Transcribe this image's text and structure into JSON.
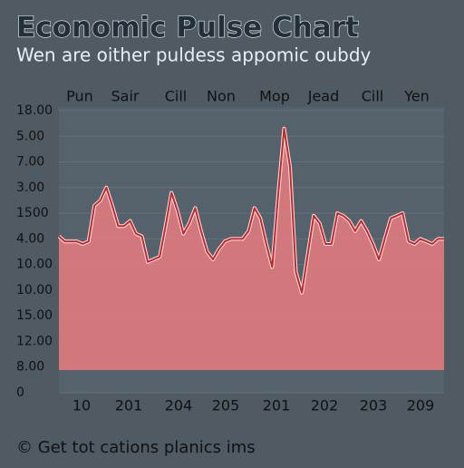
{
  "chart_data": {
    "type": "area",
    "title": "Economic Pulse Chart",
    "subtitle": "Wen are oither puldess appomic oubdy",
    "footer": "© Get tot cations planics ims",
    "top_labels": [
      "Pun",
      "Sair",
      "Cill",
      "Non",
      "Mop",
      "Jead",
      "Cill",
      "Yen"
    ],
    "bottom_labels": [
      "10",
      "201",
      "204",
      "205",
      "201",
      "202",
      "203",
      "209"
    ],
    "color": "#e07b80",
    "line_color": "#c0282e",
    "ylim": [
      0,
      11
    ],
    "yticks": [
      {
        "value": 11,
        "label": "18.00"
      },
      {
        "value": 10,
        "label": "5.00"
      },
      {
        "value": 9,
        "label": "7.00"
      },
      {
        "value": 8,
        "label": "3.00"
      },
      {
        "value": 7,
        "label": "1500"
      },
      {
        "value": 6,
        "label": "4.00"
      },
      {
        "value": 5,
        "label": "10.00"
      },
      {
        "value": 4,
        "label": "10.00"
      },
      {
        "value": 3,
        "label": "15.00"
      },
      {
        "value": 2,
        "label": "12.00"
      },
      {
        "value": 1,
        "label": "8.00"
      },
      0
    ],
    "grid": true,
    "values": [
      6.1,
      5.9,
      5.9,
      5.9,
      5.8,
      5.9,
      7.3,
      7.5,
      8.0,
      7.3,
      6.5,
      6.5,
      6.7,
      6.2,
      6.1,
      5.1,
      5.2,
      5.3,
      6.5,
      7.8,
      7.1,
      6.2,
      6.6,
      7.2,
      6.3,
      5.5,
      5.2,
      5.6,
      5.9,
      6.0,
      6.0,
      6.0,
      6.3,
      7.2,
      6.8,
      5.8,
      4.9,
      7.7,
      10.3,
      8.8,
      4.7,
      3.9,
      5.4,
      6.9,
      6.6,
      5.8,
      5.8,
      7.0,
      6.9,
      6.7,
      6.3,
      6.7,
      6.3,
      5.8,
      5.2,
      6.0,
      6.8,
      6.9,
      7.0,
      5.9,
      5.8,
      6.0,
      5.9,
      5.8,
      6.0,
      6.0
    ]
  }
}
